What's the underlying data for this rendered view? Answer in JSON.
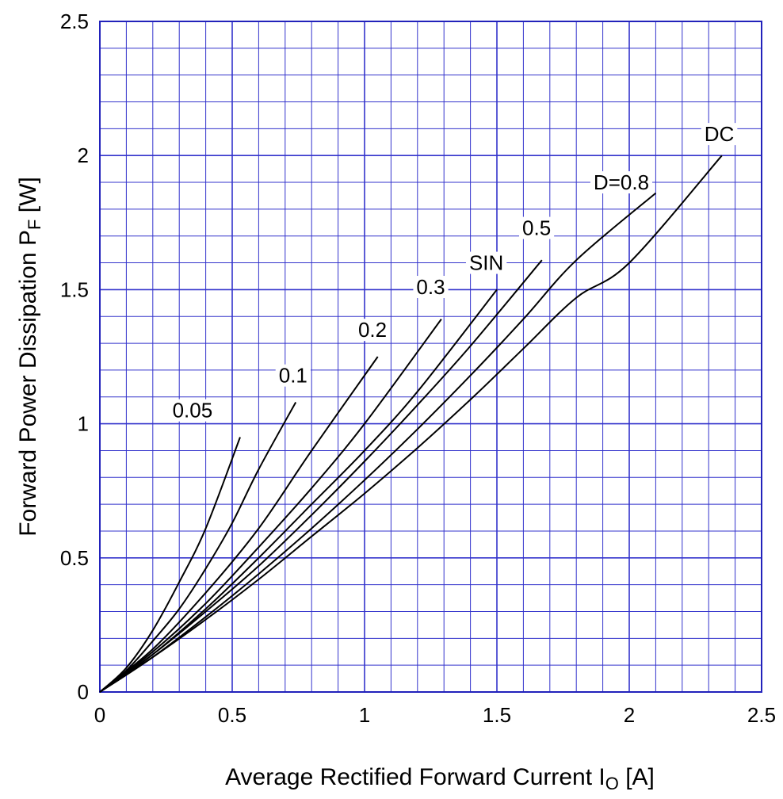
{
  "chart_data": {
    "type": "line",
    "title": "",
    "xlabel": {
      "main": "Average Rectified Forward Current  I",
      "sub": "O",
      "unit": " [A]"
    },
    "ylabel": {
      "main": "Forward Power Dissipation  P",
      "sub": "F",
      "unit": "  [W]"
    },
    "xlim": [
      0,
      2.5
    ],
    "ylim": [
      0,
      2.5
    ],
    "x_ticks": [
      "0",
      "0.5",
      "1",
      "1.5",
      "2",
      "2.5"
    ],
    "y_ticks": [
      "0",
      "0.5",
      "1",
      "1.5",
      "2",
      "2.5"
    ],
    "x_tick_values": [
      0,
      0.5,
      1,
      1.5,
      2,
      2.5
    ],
    "y_tick_values": [
      0,
      0.5,
      1,
      1.5,
      2,
      2.5
    ],
    "grid": true,
    "grid_minor_per_major": 5,
    "grid_color": "#3333cc",
    "line_color": "#000000",
    "series": [
      {
        "name": "0.05",
        "points": [
          [
            0,
            0
          ],
          [
            0.1,
            0.09
          ],
          [
            0.2,
            0.23
          ],
          [
            0.3,
            0.41
          ],
          [
            0.4,
            0.61
          ],
          [
            0.53,
            0.95
          ]
        ],
        "label_at": [
          0.35,
          1.05
        ]
      },
      {
        "name": "0.1",
        "points": [
          [
            0,
            0
          ],
          [
            0.1,
            0.08
          ],
          [
            0.2,
            0.19
          ],
          [
            0.3,
            0.31
          ],
          [
            0.4,
            0.46
          ],
          [
            0.5,
            0.63
          ],
          [
            0.6,
            0.83
          ],
          [
            0.74,
            1.08
          ]
        ],
        "label_at": [
          0.73,
          1.18
        ]
      },
      {
        "name": "0.2",
        "points": [
          [
            0,
            0
          ],
          [
            0.2,
            0.16
          ],
          [
            0.4,
            0.37
          ],
          [
            0.6,
            0.61
          ],
          [
            0.8,
            0.9
          ],
          [
            1.05,
            1.25
          ]
        ],
        "label_at": [
          1.03,
          1.35
        ]
      },
      {
        "name": "0.3",
        "points": [
          [
            0,
            0
          ],
          [
            0.2,
            0.15
          ],
          [
            0.4,
            0.33
          ],
          [
            0.6,
            0.54
          ],
          [
            0.8,
            0.76
          ],
          [
            1.0,
            1.0
          ],
          [
            1.29,
            1.39
          ]
        ],
        "label_at": [
          1.25,
          1.51
        ]
      },
      {
        "name": "SIN",
        "points": [
          [
            0,
            0
          ],
          [
            0.2,
            0.14
          ],
          [
            0.4,
            0.31
          ],
          [
            0.6,
            0.5
          ],
          [
            0.8,
            0.7
          ],
          [
            1.0,
            0.9
          ],
          [
            1.2,
            1.12
          ],
          [
            1.5,
            1.5
          ]
        ],
        "label_at": [
          1.46,
          1.6
        ]
      },
      {
        "name": "0.5",
        "points": [
          [
            0,
            0
          ],
          [
            0.2,
            0.14
          ],
          [
            0.4,
            0.3
          ],
          [
            0.6,
            0.47
          ],
          [
            0.8,
            0.66
          ],
          [
            1.0,
            0.86
          ],
          [
            1.2,
            1.07
          ],
          [
            1.4,
            1.29
          ],
          [
            1.67,
            1.61
          ]
        ],
        "label_at": [
          1.65,
          1.73
        ]
      },
      {
        "name": "D=0.8",
        "points": [
          [
            0,
            0
          ],
          [
            0.2,
            0.13
          ],
          [
            0.4,
            0.28
          ],
          [
            0.6,
            0.44
          ],
          [
            0.8,
            0.61
          ],
          [
            1.0,
            0.79
          ],
          [
            1.2,
            0.98
          ],
          [
            1.4,
            1.18
          ],
          [
            1.6,
            1.39
          ],
          [
            1.8,
            1.61
          ],
          [
            2.1,
            1.86
          ]
        ],
        "label_at": [
          1.97,
          1.9
        ]
      },
      {
        "name": "DC",
        "points": [
          [
            0,
            0
          ],
          [
            0.2,
            0.13
          ],
          [
            0.4,
            0.27
          ],
          [
            0.6,
            0.42
          ],
          [
            0.8,
            0.58
          ],
          [
            1.0,
            0.74
          ],
          [
            1.2,
            0.91
          ],
          [
            1.4,
            1.09
          ],
          [
            1.6,
            1.28
          ],
          [
            1.8,
            1.47
          ],
          [
            2.0,
            1.6
          ],
          [
            2.35,
            2.0
          ]
        ],
        "label_at": [
          2.34,
          2.08
        ]
      }
    ]
  }
}
